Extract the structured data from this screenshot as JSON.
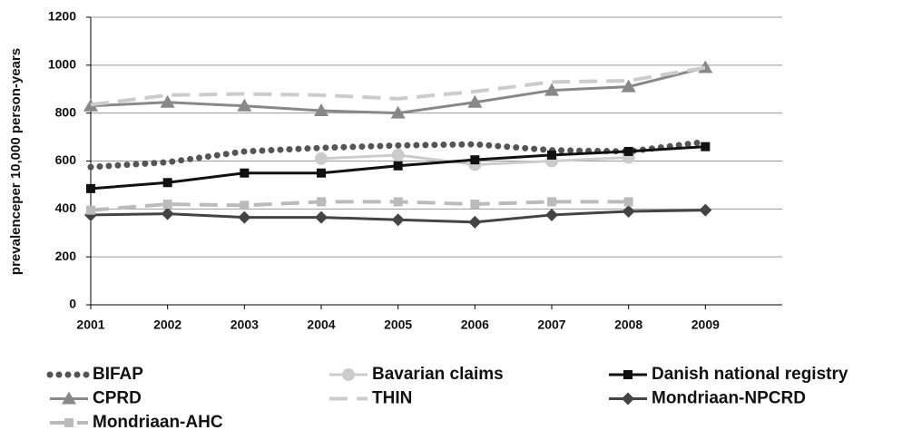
{
  "chart_data": {
    "type": "line",
    "y_label": "prevalenceper 10,000 person-years",
    "x": [
      2001,
      2002,
      2003,
      2004,
      2005,
      2006,
      2007,
      2008,
      2009
    ],
    "xlim": [
      2001,
      2010
    ],
    "xticks": [
      2001,
      2002,
      2003,
      2004,
      2005,
      2006,
      2007,
      2008,
      2009
    ],
    "ylim": [
      0,
      1200
    ],
    "yticks": [
      0,
      200,
      400,
      600,
      800,
      1000,
      1200
    ],
    "grid": true,
    "legend": "bottom",
    "series": [
      {
        "name": "BIFAP",
        "color": "#555555",
        "dash": "dotted",
        "marker": "none",
        "values": [
          575,
          595,
          640,
          655,
          665,
          670,
          645,
          640,
          680
        ]
      },
      {
        "name": "Bavarian claims",
        "color": "#cccccc",
        "dash": "solid",
        "marker": "circle",
        "values": [
          null,
          null,
          null,
          610,
          625,
          585,
          600,
          615,
          null
        ]
      },
      {
        "name": "Danish national registry",
        "color": "#111111",
        "dash": "solid",
        "marker": "square",
        "values": [
          485,
          510,
          550,
          550,
          580,
          605,
          625,
          640,
          660
        ]
      },
      {
        "name": "CPRD",
        "color": "#888888",
        "dash": "solid",
        "marker": "triangle",
        "values": [
          830,
          845,
          830,
          810,
          800,
          845,
          895,
          910,
          990
        ]
      },
      {
        "name": "THIN",
        "color": "#cccccc",
        "dash": "dashed",
        "marker": "none",
        "values": [
          835,
          875,
          880,
          875,
          860,
          890,
          930,
          935,
          990
        ]
      },
      {
        "name": "Mondriaan-NPCRD",
        "color": "#444444",
        "dash": "solid",
        "marker": "diamond",
        "values": [
          375,
          380,
          365,
          365,
          355,
          345,
          375,
          390,
          395
        ]
      },
      {
        "name": "Mondriaan-AHC",
        "color": "#bbbbbb",
        "dash": "dashed",
        "marker": "square",
        "values": [
          395,
          420,
          415,
          430,
          430,
          420,
          430,
          430,
          null
        ]
      }
    ]
  }
}
